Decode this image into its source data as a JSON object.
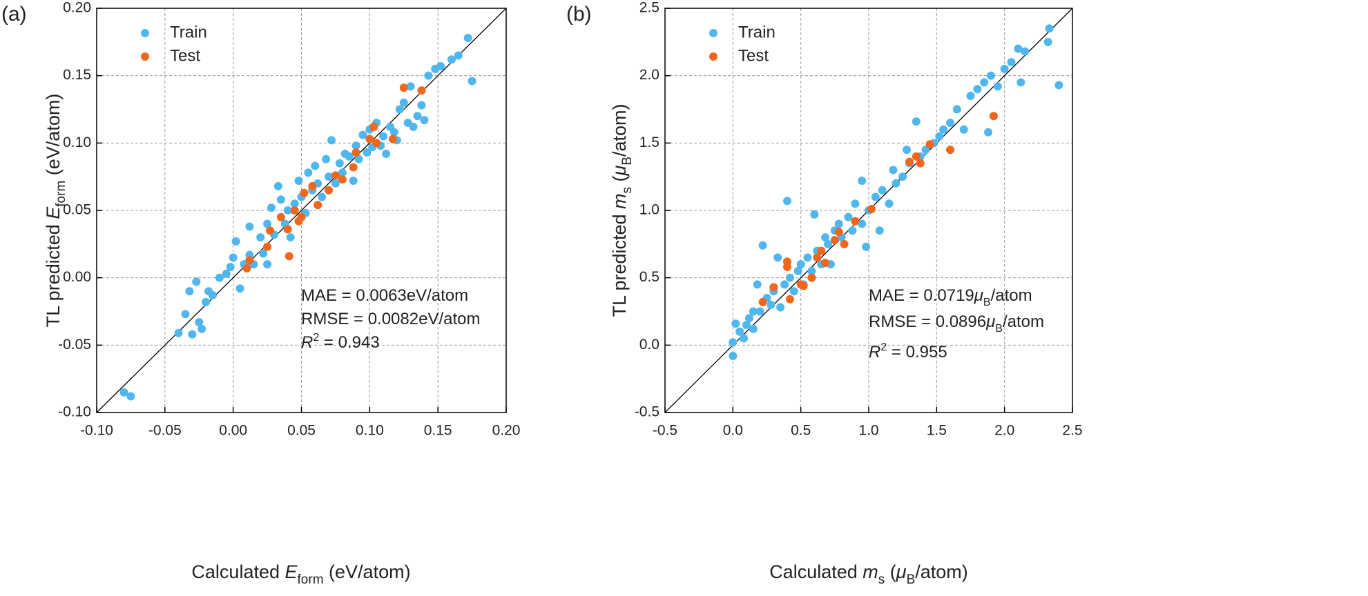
{
  "chart_data": [
    {
      "type": "scatter",
      "panel_label": "(a)",
      "xlabel": [
        "Calculated ",
        "E",
        "form",
        " (eV/atom)"
      ],
      "ylabel": [
        "TL predicted ",
        "E",
        "form",
        " (eV/atom)"
      ],
      "annotations": [
        [
          "MAE = 0.0063eV/atom"
        ],
        [
          "RMSE = 0.0082eV/atom"
        ],
        [
          "R",
          "2",
          " = 0.943"
        ]
      ],
      "xlim": [
        -0.1,
        0.2
      ],
      "ylim": [
        -0.1,
        0.2
      ],
      "xticks": [
        {
          "value": -0.1,
          "label": "-0.10"
        },
        -0.05,
        {
          "value": 0,
          "label": "0.00"
        },
        0.05,
        {
          "value": 0.1,
          "label": "0.10"
        },
        0.15,
        {
          "value": 0.2,
          "label": "0.20"
        }
      ],
      "yticks": [
        {
          "value": -0.1,
          "label": "-0.10"
        },
        -0.05,
        {
          "value": 0,
          "label": "0.00"
        },
        0.05,
        {
          "value": 0.1,
          "label": "0.10"
        },
        0.15,
        {
          "value": 0.2,
          "label": "0.20"
        }
      ],
      "grid": true,
      "legend": "upper left",
      "series": [
        {
          "name": "Train",
          "color": "#4fb7ee",
          "x": [
            -0.08,
            -0.075,
            -0.04,
            -0.035,
            -0.032,
            -0.03,
            -0.027,
            -0.025,
            -0.023,
            -0.02,
            -0.018,
            -0.015,
            -0.01,
            -0.005,
            0.0,
            0.002,
            0.005,
            0.008,
            0.01,
            0.012,
            0.015,
            0.02,
            0.022,
            0.025,
            0.028,
            0.03,
            0.033,
            0.035,
            0.038,
            0.04,
            0.042,
            0.045,
            0.048,
            0.05,
            0.053,
            0.055,
            0.058,
            0.06,
            0.062,
            0.065,
            0.068,
            0.07,
            0.072,
            0.075,
            0.078,
            0.08,
            0.082,
            0.085,
            0.088,
            0.09,
            0.092,
            0.095,
            0.098,
            0.1,
            0.102,
            0.105,
            0.108,
            0.11,
            0.112,
            0.115,
            0.118,
            0.12,
            0.122,
            0.125,
            0.128,
            0.13,
            0.132,
            0.135,
            0.138,
            0.14,
            0.143,
            0.148,
            0.152,
            0.16,
            0.165,
            0.172,
            0.175,
            0.012,
            -0.002,
            0.025
          ],
          "y": [
            -0.085,
            -0.088,
            -0.041,
            -0.027,
            -0.01,
            -0.042,
            -0.003,
            -0.033,
            -0.038,
            -0.018,
            -0.01,
            -0.013,
            0.0,
            0.003,
            0.015,
            0.027,
            -0.008,
            0.01,
            0.008,
            0.038,
            0.01,
            0.03,
            0.018,
            0.04,
            0.052,
            0.032,
            0.068,
            0.058,
            0.04,
            0.05,
            0.03,
            0.055,
            0.072,
            0.06,
            0.048,
            0.078,
            0.065,
            0.083,
            0.07,
            0.06,
            0.088,
            0.075,
            0.102,
            0.07,
            0.085,
            0.078,
            0.092,
            0.09,
            0.072,
            0.098,
            0.088,
            0.106,
            0.093,
            0.11,
            0.097,
            0.115,
            0.098,
            0.105,
            0.092,
            0.112,
            0.108,
            0.102,
            0.125,
            0.13,
            0.115,
            0.142,
            0.112,
            0.12,
            0.128,
            0.117,
            0.15,
            0.155,
            0.157,
            0.162,
            0.165,
            0.178,
            0.146,
            0.017,
            0.008,
            0.01
          ]
        },
        {
          "name": "Test",
          "color": "#f0661c",
          "x": [
            0.01,
            0.012,
            0.025,
            0.027,
            0.035,
            0.04,
            0.041,
            0.045,
            0.048,
            0.05,
            0.052,
            0.058,
            0.062,
            0.07,
            0.075,
            0.08,
            0.088,
            0.09,
            0.1,
            0.103,
            0.105,
            0.117,
            0.125,
            0.138
          ],
          "y": [
            0.007,
            0.013,
            0.023,
            0.035,
            0.045,
            0.036,
            0.016,
            0.05,
            0.042,
            0.045,
            0.063,
            0.068,
            0.054,
            0.065,
            0.076,
            0.073,
            0.082,
            0.093,
            0.103,
            0.112,
            0.1,
            0.103,
            0.141,
            0.139
          ]
        }
      ]
    },
    {
      "type": "scatter",
      "panel_label": "(b)",
      "xlabel": [
        "Calculated ",
        "m",
        "s",
        " (",
        "μ",
        "B",
        "/atom)"
      ],
      "ylabel": [
        "TL predicted ",
        "m",
        "s",
        " (",
        "μ",
        "B",
        "/atom)"
      ],
      "annotations": [
        [
          "MAE = 0.0719",
          "μ",
          "B",
          "/atom"
        ],
        [
          "RMSE = 0.0896",
          "μ",
          "B",
          "/atom"
        ],
        [
          "R",
          "2",
          " = 0.955"
        ]
      ],
      "xlim": [
        -0.5,
        2.5
      ],
      "ylim": [
        -0.5,
        2.5
      ],
      "xticks": [
        -0.5,
        {
          "value": 0,
          "label": "0.0"
        },
        0.5,
        {
          "value": 1,
          "label": "1.0"
        },
        1.5,
        {
          "value": 2,
          "label": "2.0"
        },
        2.5
      ],
      "yticks": [
        -0.5,
        {
          "value": 0,
          "label": "0.0"
        },
        0.5,
        {
          "value": 1,
          "label": "1.0"
        },
        1.5,
        {
          "value": 2,
          "label": "2.0"
        },
        2.5
      ],
      "grid": true,
      "legend": "upper left",
      "series": [
        {
          "name": "Train",
          "color": "#4fb7ee",
          "x": [
            0.0,
            0.0,
            0.02,
            0.05,
            0.08,
            0.1,
            0.12,
            0.15,
            0.18,
            0.2,
            0.22,
            0.25,
            0.28,
            0.3,
            0.33,
            0.35,
            0.38,
            0.4,
            0.42,
            0.45,
            0.48,
            0.5,
            0.52,
            0.55,
            0.58,
            0.6,
            0.62,
            0.65,
            0.68,
            0.7,
            0.72,
            0.75,
            0.78,
            0.8,
            0.85,
            0.88,
            0.9,
            0.95,
            0.98,
            1.0,
            1.05,
            1.08,
            1.1,
            1.15,
            1.18,
            1.2,
            1.25,
            1.28,
            1.3,
            1.35,
            1.38,
            1.42,
            1.48,
            1.52,
            1.55,
            1.6,
            1.65,
            1.7,
            1.75,
            1.8,
            1.85,
            1.88,
            1.9,
            1.95,
            2.0,
            2.05,
            2.1,
            2.15,
            2.12,
            2.32,
            2.33,
            2.4,
            0.95,
            0.15
          ],
          "y": [
            0.02,
            -0.08,
            0.16,
            0.1,
            0.05,
            0.15,
            0.2,
            0.12,
            0.45,
            0.25,
            0.74,
            0.35,
            0.3,
            0.4,
            0.65,
            0.28,
            0.45,
            1.07,
            0.5,
            0.4,
            0.55,
            0.6,
            0.45,
            0.65,
            0.55,
            0.97,
            0.7,
            0.6,
            0.8,
            0.75,
            0.6,
            0.85,
            0.9,
            0.8,
            0.95,
            0.85,
            1.05,
            0.9,
            0.73,
            1.0,
            1.1,
            0.85,
            1.15,
            1.05,
            1.3,
            1.2,
            1.25,
            1.45,
            1.35,
            1.66,
            1.4,
            1.45,
            1.5,
            1.55,
            1.6,
            1.65,
            1.75,
            1.6,
            1.85,
            1.9,
            1.95,
            1.58,
            2.0,
            1.92,
            2.05,
            2.1,
            2.2,
            2.18,
            1.95,
            2.25,
            2.35,
            1.93,
            1.22,
            0.25
          ]
        },
        {
          "name": "Test",
          "color": "#f0661c",
          "x": [
            0.22,
            0.3,
            0.4,
            0.4,
            0.42,
            0.5,
            0.52,
            0.58,
            0.62,
            0.65,
            0.68,
            0.75,
            0.78,
            0.82,
            0.9,
            1.02,
            1.3,
            1.35,
            1.38,
            1.45,
            1.6,
            1.92
          ],
          "y": [
            0.32,
            0.43,
            0.62,
            0.58,
            0.34,
            0.45,
            0.44,
            0.5,
            0.65,
            0.7,
            0.61,
            0.78,
            0.84,
            0.75,
            0.92,
            1.01,
            1.36,
            1.4,
            1.35,
            1.49,
            1.45,
            1.7
          ]
        }
      ]
    }
  ]
}
